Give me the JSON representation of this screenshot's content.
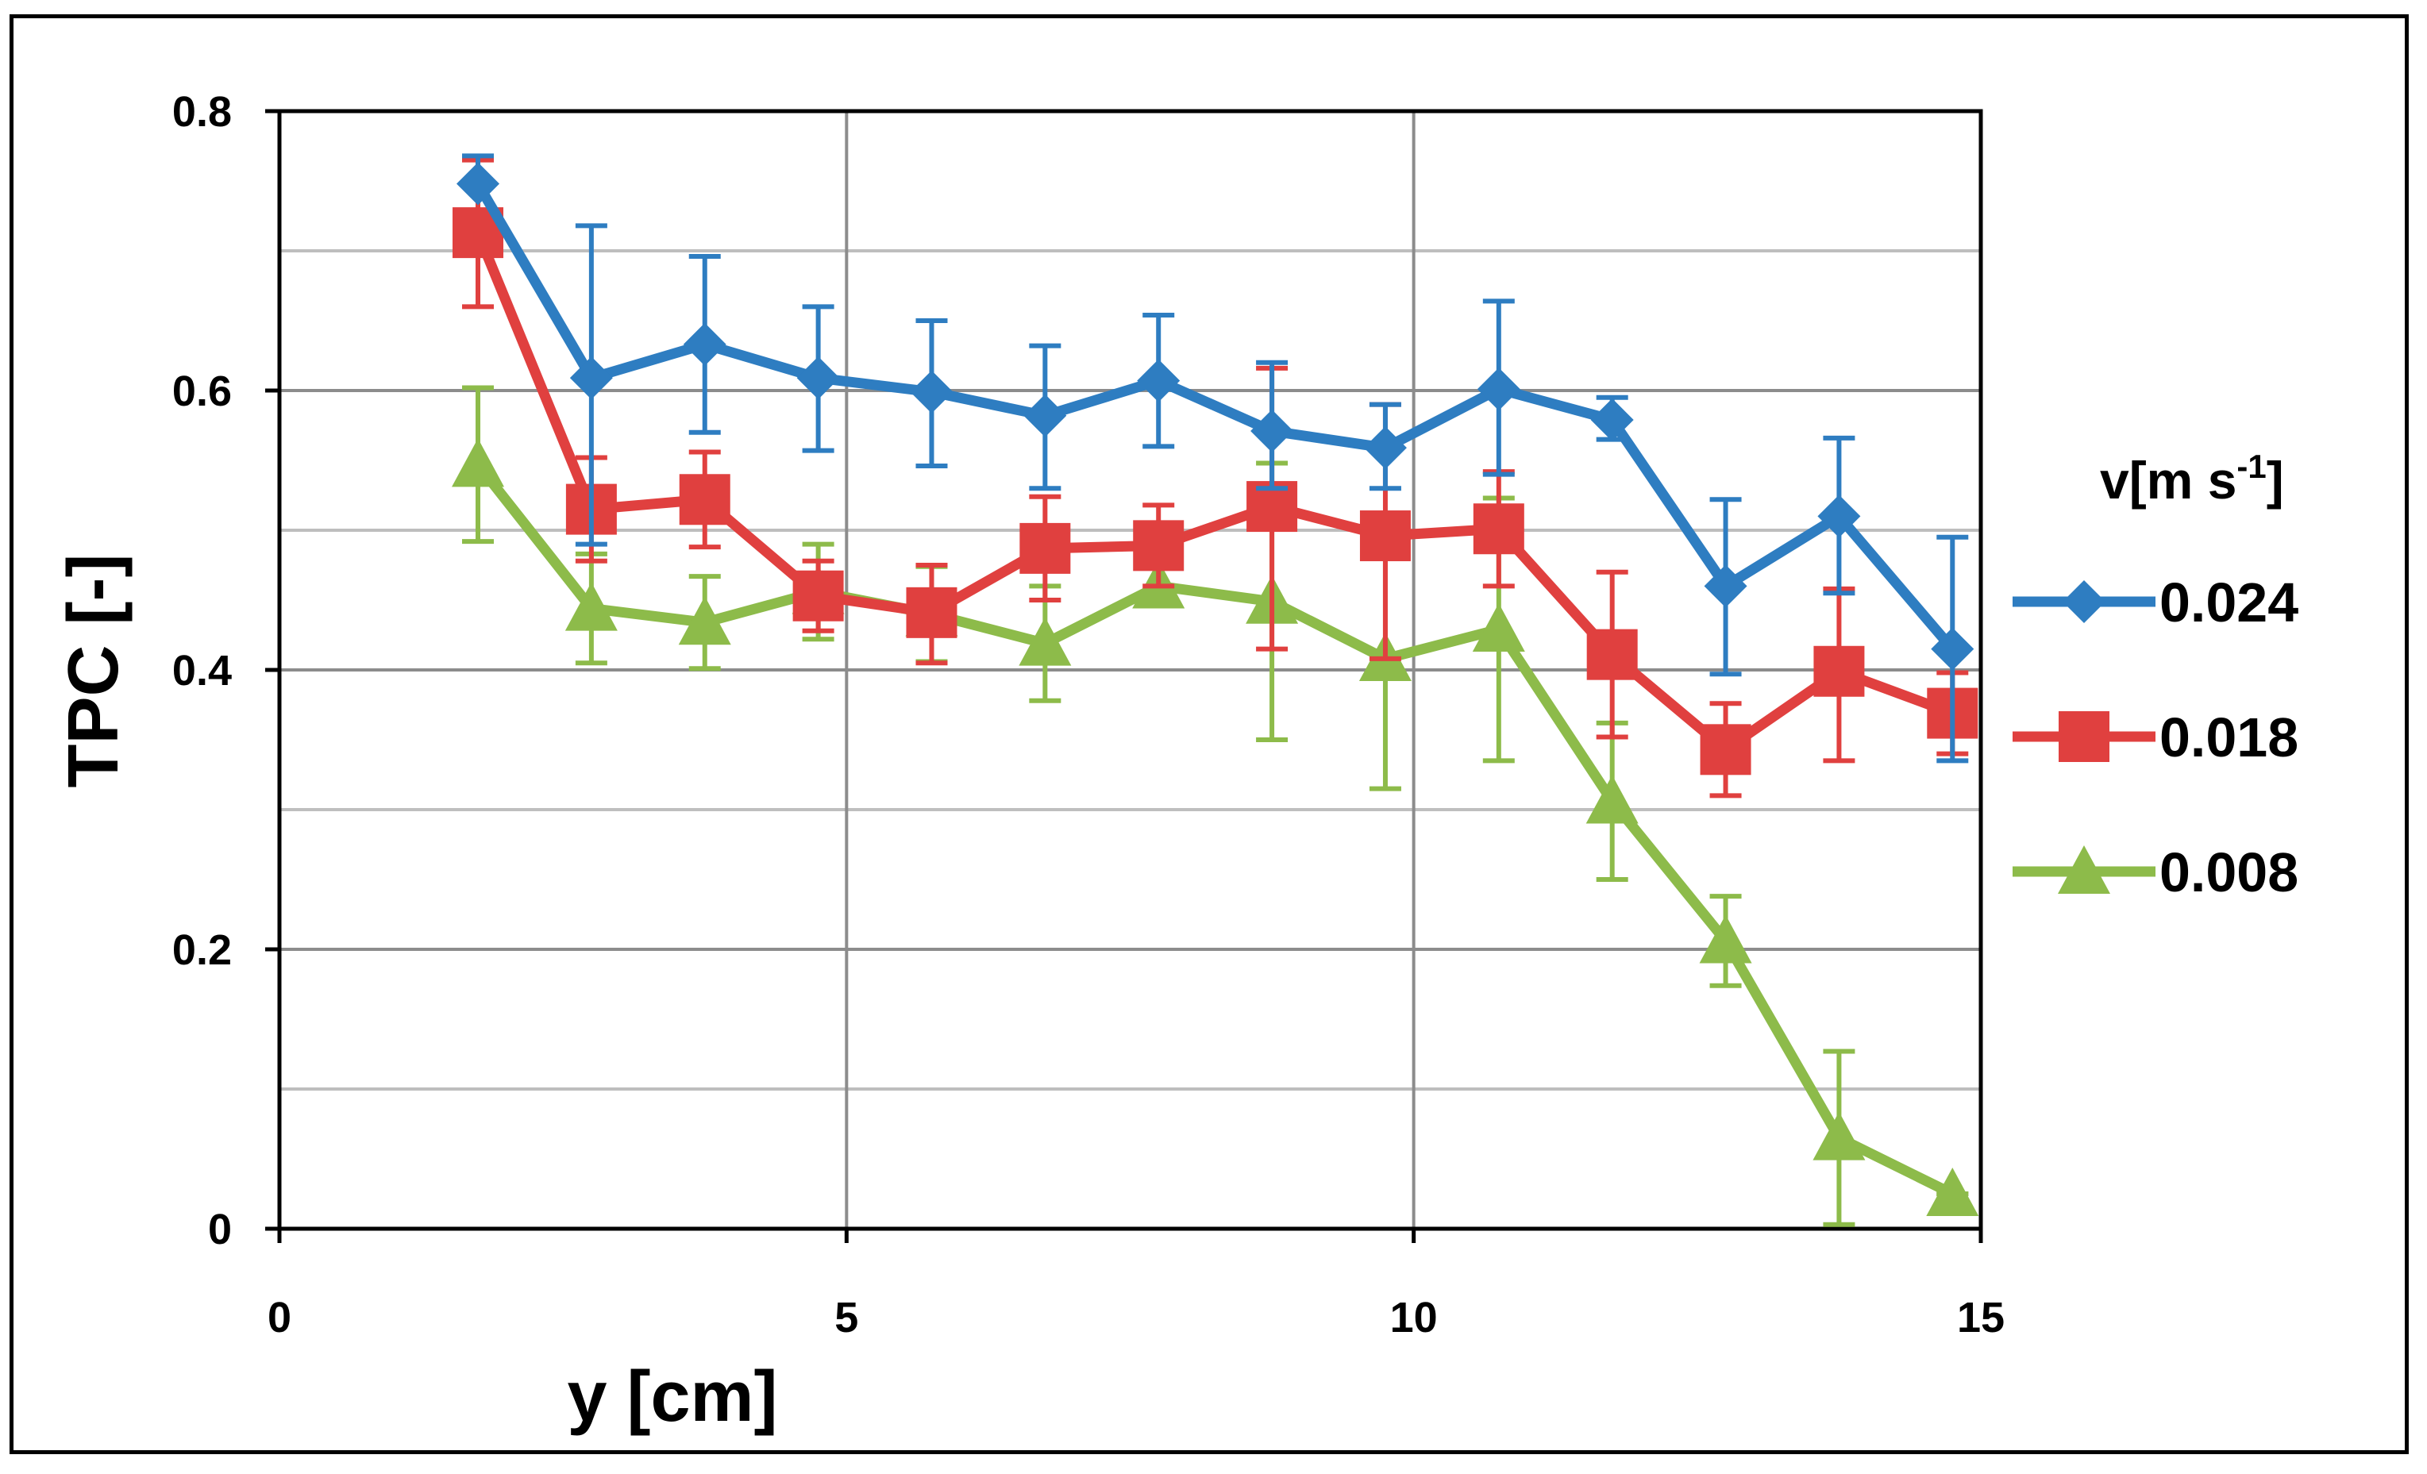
{
  "chart_data": {
    "type": "line",
    "title": "",
    "xlabel": "y [cm]",
    "ylabel": "TPC [-]",
    "xlim": [
      0,
      15
    ],
    "ylim": [
      0,
      0.8
    ],
    "xticks": [
      0,
      5,
      10,
      15
    ],
    "xtick_labels": [
      "0",
      "5",
      "10",
      "15"
    ],
    "yticks": [
      0,
      0.2,
      0.4,
      0.6,
      0.8
    ],
    "ytick_labels": [
      "0",
      "0.2",
      "0.4",
      "0.6",
      "0.8"
    ],
    "minor_y_gridlines": [
      0.1,
      0.3,
      0.5,
      0.7
    ],
    "grid": true,
    "legend": {
      "title_main": "v[m s",
      "title_sup": "-1",
      "title_end": "]",
      "placement": "right"
    },
    "x": [
      1.75,
      2.75,
      3.75,
      4.75,
      5.75,
      6.75,
      7.75,
      8.75,
      9.75,
      10.75,
      11.75,
      12.75,
      13.75,
      14.75
    ],
    "series": [
      {
        "name": "0.024",
        "color": "#2E7DC1",
        "marker": "diamond",
        "values": [
          0.748,
          0.609,
          0.633,
          0.609,
          0.599,
          0.582,
          0.607,
          0.571,
          0.559,
          0.601,
          0.579,
          0.46,
          0.51,
          0.415
        ],
        "err_low": [
          0.748,
          0.49,
          0.57,
          0.557,
          0.546,
          0.53,
          0.56,
          0.53,
          0.53,
          0.54,
          0.565,
          0.397,
          0.455,
          0.335
        ],
        "err_high": [
          0.768,
          0.718,
          0.696,
          0.66,
          0.65,
          0.632,
          0.654,
          0.62,
          0.59,
          0.664,
          0.595,
          0.522,
          0.566,
          0.495
        ]
      },
      {
        "name": "0.018",
        "color": "#E0403F",
        "marker": "square",
        "values": [
          0.713,
          0.515,
          0.522,
          0.453,
          0.441,
          0.487,
          0.489,
          0.517,
          0.496,
          0.501,
          0.411,
          0.343,
          0.399,
          0.369
        ],
        "err_low": [
          0.66,
          0.478,
          0.488,
          0.428,
          0.405,
          0.45,
          0.46,
          0.415,
          0.408,
          0.46,
          0.352,
          0.31,
          0.335,
          0.34
        ],
        "err_high": [
          0.765,
          0.552,
          0.556,
          0.478,
          0.475,
          0.524,
          0.518,
          0.616,
          0.59,
          0.542,
          0.47,
          0.376,
          0.458,
          0.398
        ]
      },
      {
        "name": "0.008",
        "color": "#8DBB4A",
        "marker": "triangle",
        "values": [
          0.547,
          0.444,
          0.434,
          0.456,
          0.44,
          0.419,
          0.46,
          0.449,
          0.408,
          0.429,
          0.306,
          0.206,
          0.065,
          0.025
        ],
        "err_low": [
          0.492,
          0.405,
          0.401,
          0.422,
          0.406,
          0.378,
          0.446,
          0.35,
          0.315,
          0.335,
          0.25,
          0.174,
          0.003,
          0.025
        ],
        "err_high": [
          0.602,
          0.483,
          0.467,
          0.49,
          0.474,
          0.46,
          0.474,
          0.548,
          0.501,
          0.523,
          0.362,
          0.238,
          0.127,
          0.025
        ]
      }
    ]
  }
}
